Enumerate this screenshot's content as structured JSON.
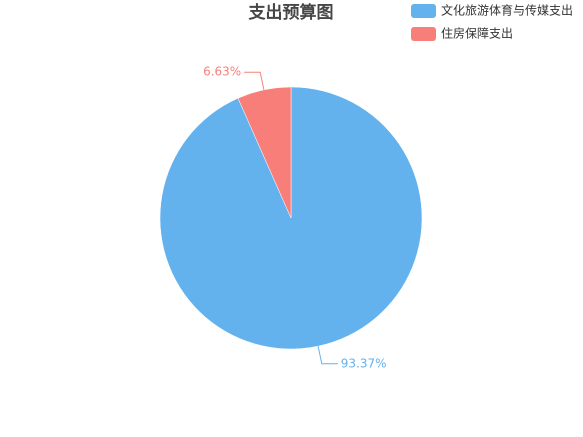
{
  "chart_data": {
    "type": "pie",
    "title": "支出预算图",
    "categories": [
      "文化旅游体育与传媒支出",
      "住房保障支出"
    ],
    "values": [
      93.37,
      6.63
    ],
    "value_labels": [
      "93.37%",
      "6.63%"
    ],
    "colors": [
      "#63b2ee",
      "#f87f79"
    ],
    "legend": "top-right"
  }
}
